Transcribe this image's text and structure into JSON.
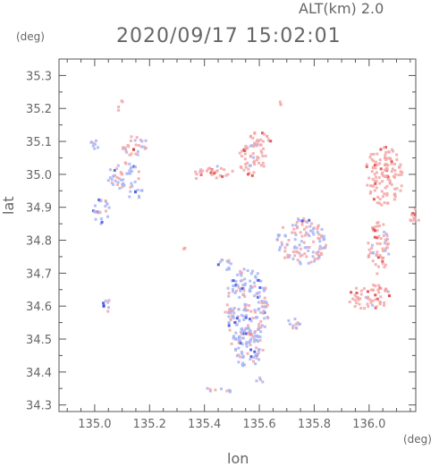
{
  "header": {
    "alt_label": "ALT(km) 2.0",
    "datetime": "2020/09/17 15:02:01"
  },
  "chart_data": {
    "type": "heatmap",
    "title": "2020/09/17 15:02:01",
    "xlabel": "lon",
    "ylabel": "lat",
    "x_unit": "(deg)",
    "y_unit": "(deg)",
    "xlim": [
      134.87,
      136.17
    ],
    "ylim": [
      34.28,
      35.35
    ],
    "x_ticks": [
      "135.0",
      "135.2",
      "135.4",
      "135.6",
      "135.8",
      "136.0"
    ],
    "y_ticks": [
      "34.3",
      "34.4",
      "34.5",
      "34.6",
      "34.7",
      "34.8",
      "34.9",
      "35.0",
      "35.1",
      "35.2",
      "35.3"
    ],
    "grid": false,
    "colors": {
      "positive": "#f4a6a6",
      "positive_strong": "#e04040",
      "negative": "#a8b4f4",
      "negative_strong": "#3a4ee0"
    },
    "regions": [
      {
        "lon": 135.55,
        "lat": 34.6,
        "rlon": 0.08,
        "rlat": 0.12,
        "value": -0.3
      },
      {
        "lon": 135.55,
        "lat": 34.48,
        "rlon": 0.06,
        "rlat": 0.06,
        "value": -0.2
      },
      {
        "lon": 135.57,
        "lat": 35.05,
        "rlon": 0.05,
        "rlat": 0.05,
        "value": 0.4
      },
      {
        "lon": 135.6,
        "lat": 35.11,
        "rlon": 0.04,
        "rlat": 0.03,
        "value": 0.5
      },
      {
        "lon": 135.45,
        "lat": 35.01,
        "rlon": 0.05,
        "rlat": 0.02,
        "value": 0.4
      },
      {
        "lon": 135.37,
        "lat": 35.01,
        "rlon": 0.02,
        "rlat": 0.02,
        "value": 0.3
      },
      {
        "lon": 136.05,
        "lat": 35.0,
        "rlon": 0.07,
        "rlat": 0.09,
        "value": 0.6
      },
      {
        "lon": 136.03,
        "lat": 34.78,
        "rlon": 0.04,
        "rlat": 0.08,
        "value": 0.5
      },
      {
        "lon": 136.0,
        "lat": 34.63,
        "rlon": 0.08,
        "rlat": 0.04,
        "value": 0.5
      },
      {
        "lon": 136.16,
        "lat": 34.88,
        "rlon": 0.02,
        "rlat": 0.03,
        "value": 0.6
      },
      {
        "lon": 135.75,
        "lat": 34.8,
        "rlon": 0.09,
        "rlat": 0.07,
        "value": 0.0
      },
      {
        "lon": 135.02,
        "lat": 34.89,
        "rlon": 0.03,
        "rlat": 0.04,
        "value": -0.4
      },
      {
        "lon": 135.1,
        "lat": 35.0,
        "rlon": 0.06,
        "rlat": 0.04,
        "value": -0.3
      },
      {
        "lon": 135.14,
        "lat": 35.09,
        "rlon": 0.05,
        "rlat": 0.03,
        "value": 0.1
      },
      {
        "lon": 135.14,
        "lat": 34.95,
        "rlon": 0.03,
        "rlat": 0.02,
        "value": -0.3
      },
      {
        "lon": 135.04,
        "lat": 34.6,
        "rlon": 0.015,
        "rlat": 0.03,
        "value": -0.5
      },
      {
        "lon": 135.47,
        "lat": 34.73,
        "rlon": 0.03,
        "rlat": 0.02,
        "value": -0.2
      },
      {
        "lon": 135.72,
        "lat": 34.55,
        "rlon": 0.03,
        "rlat": 0.02,
        "value": -0.2
      },
      {
        "lon": 135.6,
        "lat": 34.38,
        "rlon": 0.02,
        "rlat": 0.01,
        "value": -0.1
      },
      {
        "lon": 135.45,
        "lat": 34.35,
        "rlon": 0.05,
        "rlat": 0.01,
        "value": -0.2
      },
      {
        "lon": 135.09,
        "lat": 35.21,
        "rlon": 0.01,
        "rlat": 0.02,
        "value": 0.2
      },
      {
        "lon": 135.0,
        "lat": 35.1,
        "rlon": 0.02,
        "rlat": 0.02,
        "value": -0.3
      },
      {
        "lon": 135.67,
        "lat": 35.22,
        "rlon": 0.005,
        "rlat": 0.005,
        "value": 0.9
      },
      {
        "lon": 135.32,
        "lat": 34.78,
        "rlon": 0.005,
        "rlat": 0.005,
        "value": 0.9
      }
    ]
  }
}
